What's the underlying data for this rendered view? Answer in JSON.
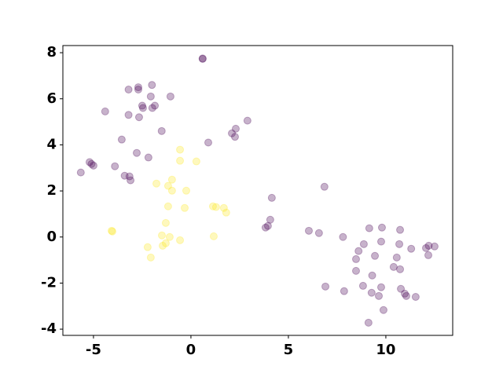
{
  "chart_data": {
    "type": "scatter",
    "xlim": [
      -6.57,
      13.43
    ],
    "ylim": [
      -4.27,
      8.31
    ],
    "xticks": [
      -5,
      0,
      5,
      10
    ],
    "yticks": [
      -4,
      -2,
      0,
      2,
      4,
      6,
      8
    ],
    "series": [
      {
        "color": "#440154",
        "x": [
          0.6,
          0.6,
          -2.0,
          -2.7,
          -2.7,
          -3.2,
          -2.06,
          -1.05,
          -2.5,
          -2.46,
          -1.85,
          -1.98,
          -4.4,
          -3.2,
          -2.66,
          -1.5,
          2.3,
          2.9,
          2.1,
          2.26,
          -3.55,
          0.89,
          -2.78,
          -2.18,
          -5.2,
          -5.0,
          -5.1,
          -3.9,
          -5.65,
          -3.4,
          -3.15,
          -3.1,
          6.85,
          4.15,
          4.07,
          3.95,
          3.83,
          6.05,
          6.57,
          7.8,
          9.15,
          9.8,
          10.73,
          8.87,
          9.76,
          8.6,
          9.44,
          8.47,
          10.69,
          11.3,
          12.06,
          12.2,
          12.5,
          12.18,
          10.56,
          8.47,
          10.4,
          10.73,
          9.3,
          6.9,
          8.83,
          9.76,
          10.77,
          10.97,
          11.05,
          11.53,
          7.86,
          9.27,
          9.64,
          9.88,
          9.11
        ],
        "values": [
          7.75,
          7.73,
          6.6,
          6.5,
          6.4,
          6.4,
          6.1,
          6.1,
          5.7,
          5.6,
          5.7,
          5.6,
          5.45,
          5.3,
          5.2,
          4.6,
          4.7,
          5.05,
          4.5,
          4.35,
          4.23,
          4.1,
          3.65,
          3.45,
          3.25,
          3.1,
          3.17,
          3.07,
          2.8,
          2.66,
          2.63,
          2.46,
          2.18,
          1.7,
          0.75,
          0.48,
          0.41,
          0.27,
          0.17,
          0.0,
          0.38,
          0.41,
          0.31,
          -0.31,
          -0.2,
          -0.61,
          -0.82,
          -0.96,
          -0.31,
          -0.51,
          -0.48,
          -0.38,
          -0.41,
          -0.79,
          -0.89,
          -1.47,
          -1.3,
          -1.4,
          -1.67,
          -2.15,
          -2.12,
          -2.18,
          -2.25,
          -2.46,
          -2.56,
          -2.6,
          -2.35,
          -2.42,
          -2.56,
          -3.17,
          -3.72
        ]
      },
      {
        "color": "#fde725",
        "x": [
          -0.56,
          0.28,
          -0.56,
          -0.97,
          -1.77,
          -1.17,
          -0.97,
          -0.24,
          -1.17,
          -0.32,
          1.13,
          1.29,
          1.69,
          1.81,
          -1.29,
          -4.03,
          -4.07,
          -1.49,
          -1.09,
          1.17,
          -0.56,
          -1.29,
          -1.45,
          -2.22,
          -2.06
        ],
        "values": [
          3.79,
          3.28,
          3.31,
          2.49,
          2.32,
          2.22,
          2.01,
          2.01,
          1.33,
          1.26,
          1.33,
          1.3,
          1.26,
          1.06,
          0.61,
          0.24,
          0.27,
          0.07,
          0.0,
          0.03,
          -0.14,
          -0.27,
          -0.38,
          -0.44,
          -0.89
        ]
      }
    ]
  }
}
